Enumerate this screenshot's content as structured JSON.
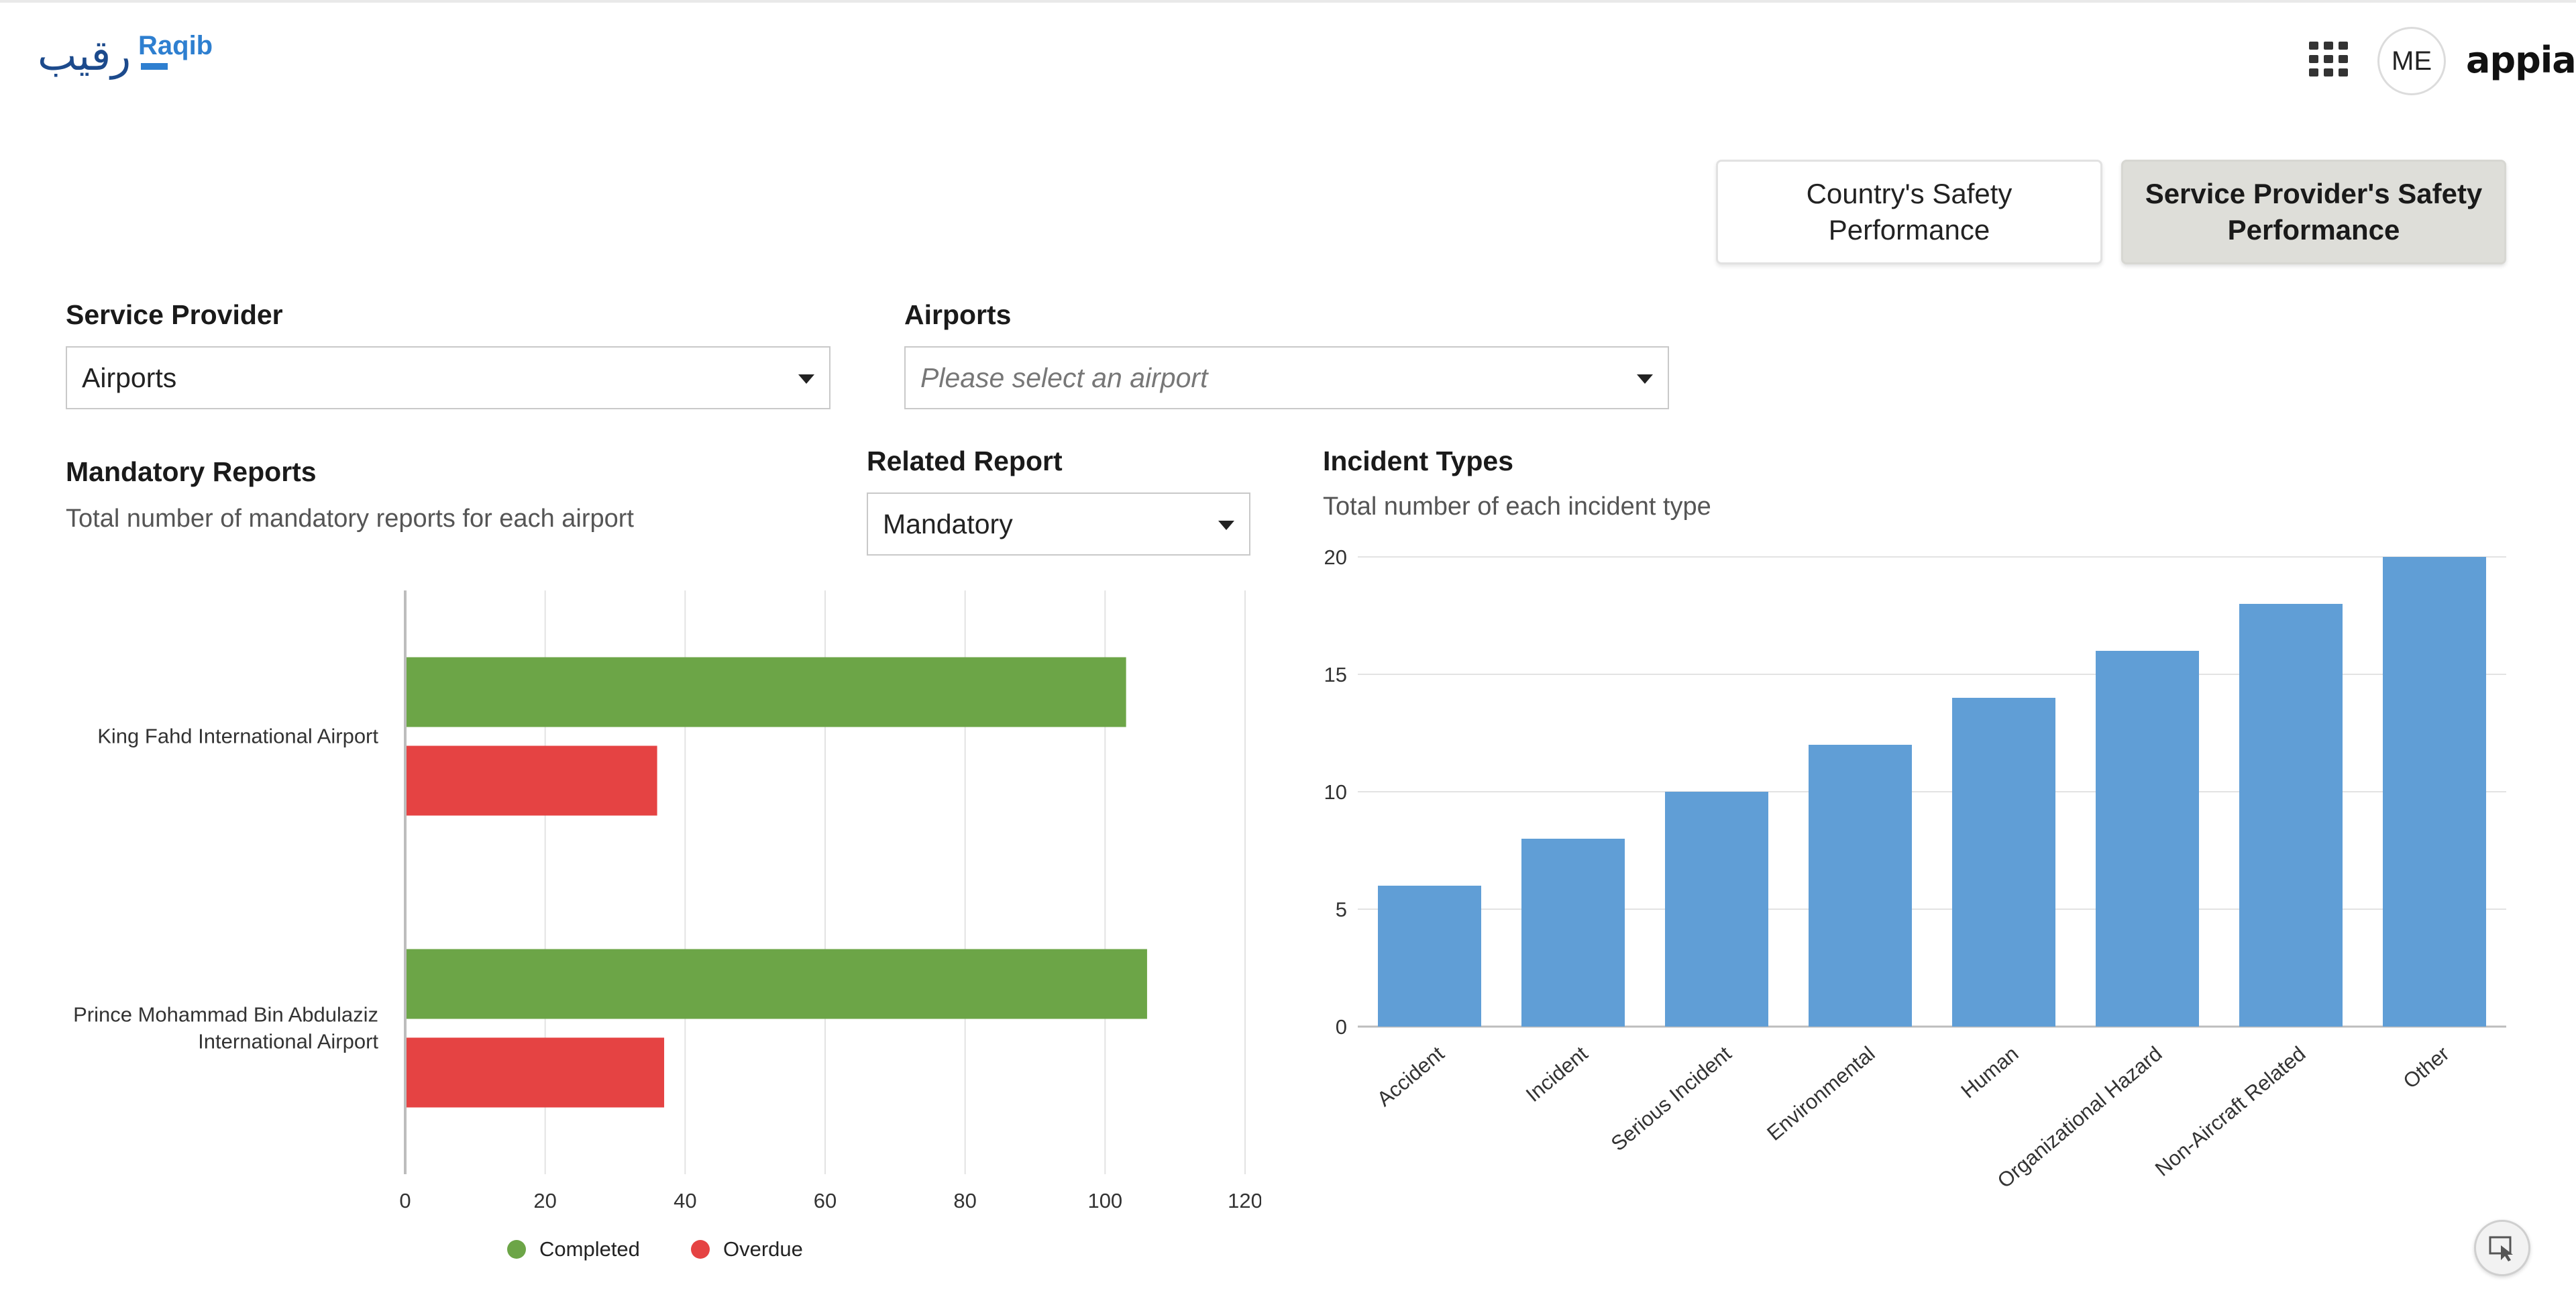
{
  "header": {
    "logo_arabic": "رقيب",
    "logo_english": "Raqib",
    "avatar_initials": "ME",
    "brand": "appian"
  },
  "tabs": {
    "country": "Country's Safety Performance",
    "provider": "Service Provider's Safety Performance"
  },
  "filters": {
    "service_provider_label": "Service Provider",
    "service_provider_value": "Airports",
    "airports_label": "Airports",
    "airports_placeholder": "Please select an airport",
    "related_report_label": "Related Report",
    "related_report_value": "Mandatory"
  },
  "mandatory_reports": {
    "title": "Mandatory Reports",
    "subtitle": "Total number of mandatory reports for each airport"
  },
  "incident_types": {
    "title": "Incident Types",
    "subtitle": "Total number of each incident type"
  },
  "colors": {
    "completed": "#6ca547",
    "overdue": "#e54343",
    "columns": "#609ed6"
  },
  "chart_data": [
    {
      "type": "bar",
      "orientation": "horizontal",
      "categories": [
        "King Fahd International Airport",
        "Prince Mohammad Bin Abdulaziz International Airport"
      ],
      "series": [
        {
          "name": "Completed",
          "values": [
            103,
            106
          ]
        },
        {
          "name": "Overdue",
          "values": [
            36,
            37
          ]
        }
      ],
      "xlim": [
        0,
        120
      ],
      "xticks": [
        "0",
        "20",
        "40",
        "60",
        "80",
        "100",
        "120"
      ],
      "grid": true,
      "legend": "bottom-center"
    },
    {
      "type": "bar",
      "categories": [
        "Accident",
        "Incident",
        "Serious Incident",
        "Environmental",
        "Human",
        "Organizational Hazard",
        "Non-Aircraft Related",
        "Other"
      ],
      "values": [
        6,
        8,
        10,
        12,
        14,
        16,
        18,
        20
      ],
      "ylim": [
        0,
        20
      ],
      "yticks": [
        "0",
        "5",
        "10",
        "15",
        "20"
      ],
      "grid": true
    }
  ]
}
